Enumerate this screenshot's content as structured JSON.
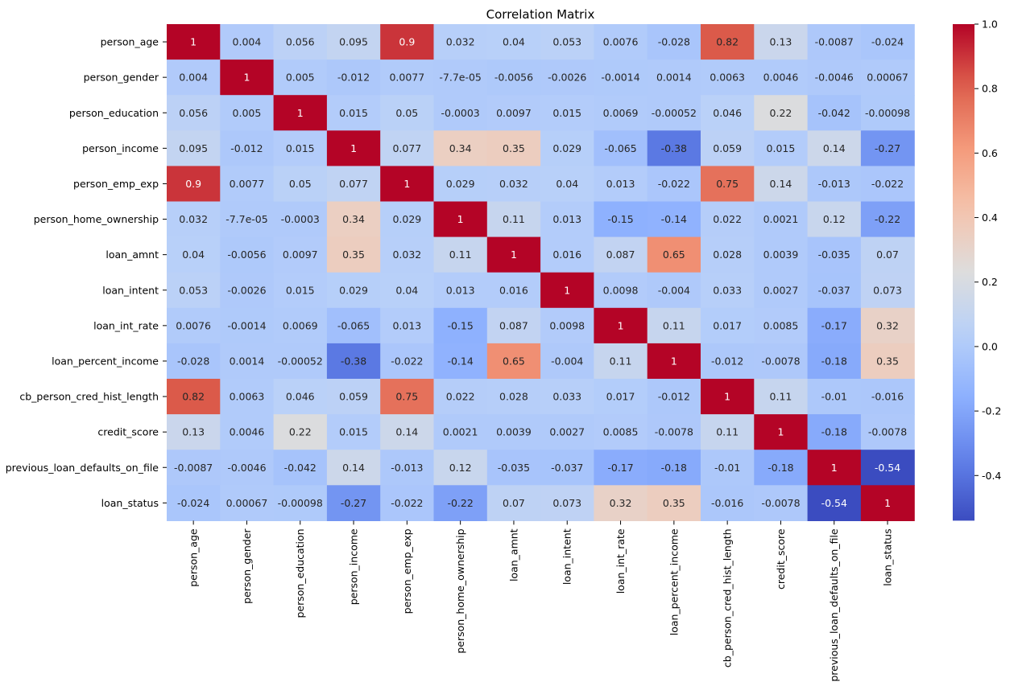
{
  "chart_data": {
    "type": "heatmap",
    "title": "Correlation Matrix",
    "xlabel": "",
    "ylabel": "",
    "rows": [
      "person_age",
      "person_gender",
      "person_education",
      "person_income",
      "person_emp_exp",
      "person_home_ownership",
      "loan_amnt",
      "loan_intent",
      "loan_int_rate",
      "loan_percent_income",
      "cb_person_cred_hist_length",
      "credit_score",
      "previous_loan_defaults_on_file",
      "loan_status"
    ],
    "columns": [
      "person_age",
      "person_gender",
      "person_education",
      "person_income",
      "person_emp_exp",
      "person_home_ownership",
      "loan_amnt",
      "loan_intent",
      "loan_int_rate",
      "loan_percent_income",
      "cb_person_cred_hist_length",
      "credit_score",
      "previous_loan_defaults_on_file",
      "loan_status"
    ],
    "annotations": [
      [
        "1",
        "0.004",
        "0.056",
        "0.095",
        "0.9",
        "0.032",
        "0.04",
        "0.053",
        "0.0076",
        "-0.028",
        "0.82",
        "0.13",
        "-0.0087",
        "-0.024"
      ],
      [
        "0.004",
        "1",
        "0.005",
        "-0.012",
        "0.0077",
        "-7.7e-05",
        "-0.0056",
        "-0.0026",
        "-0.0014",
        "0.0014",
        "0.0063",
        "0.0046",
        "-0.0046",
        "0.00067"
      ],
      [
        "0.056",
        "0.005",
        "1",
        "0.015",
        "0.05",
        "-0.0003",
        "0.0097",
        "0.015",
        "0.0069",
        "-0.00052",
        "0.046",
        "0.22",
        "-0.042",
        "-0.00098"
      ],
      [
        "0.095",
        "-0.012",
        "0.015",
        "1",
        "0.077",
        "0.34",
        "0.35",
        "0.029",
        "-0.065",
        "-0.38",
        "0.059",
        "0.015",
        "0.14",
        "-0.27"
      ],
      [
        "0.9",
        "0.0077",
        "0.05",
        "0.077",
        "1",
        "0.029",
        "0.032",
        "0.04",
        "0.013",
        "-0.022",
        "0.75",
        "0.14",
        "-0.013",
        "-0.022"
      ],
      [
        "0.032",
        "-7.7e-05",
        "-0.0003",
        "0.34",
        "0.029",
        "1",
        "0.11",
        "0.013",
        "-0.15",
        "-0.14",
        "0.022",
        "0.0021",
        "0.12",
        "-0.22"
      ],
      [
        "0.04",
        "-0.0056",
        "0.0097",
        "0.35",
        "0.032",
        "0.11",
        "1",
        "0.016",
        "0.087",
        "0.65",
        "0.028",
        "0.0039",
        "-0.035",
        "0.07"
      ],
      [
        "0.053",
        "-0.0026",
        "0.015",
        "0.029",
        "0.04",
        "0.013",
        "0.016",
        "1",
        "0.0098",
        "-0.004",
        "0.033",
        "0.0027",
        "-0.037",
        "0.073"
      ],
      [
        "0.0076",
        "-0.0014",
        "0.0069",
        "-0.065",
        "0.013",
        "-0.15",
        "0.087",
        "0.0098",
        "1",
        "0.11",
        "0.017",
        "0.0085",
        "-0.17",
        "0.32"
      ],
      [
        "-0.028",
        "0.0014",
        "-0.00052",
        "-0.38",
        "-0.022",
        "-0.14",
        "0.65",
        "-0.004",
        "0.11",
        "1",
        "-0.012",
        "-0.0078",
        "-0.18",
        "0.35"
      ],
      [
        "0.82",
        "0.0063",
        "0.046",
        "0.059",
        "0.75",
        "0.022",
        "0.028",
        "0.033",
        "0.017",
        "-0.012",
        "1",
        "0.11",
        "-0.01",
        "-0.016"
      ],
      [
        "0.13",
        "0.0046",
        "0.22",
        "0.015",
        "0.14",
        "0.0021",
        "0.0039",
        "0.0027",
        "0.0085",
        "-0.0078",
        "0.11",
        "1",
        "-0.18",
        "-0.0078"
      ],
      [
        "-0.0087",
        "-0.0046",
        "-0.042",
        "0.14",
        "-0.013",
        "0.12",
        "-0.035",
        "-0.037",
        "-0.17",
        "-0.18",
        "-0.01",
        "-0.18",
        "1",
        "-0.54"
      ],
      [
        "-0.024",
        "0.00067",
        "-0.00098",
        "-0.27",
        "-0.022",
        "-0.22",
        "0.07",
        "0.073",
        "0.32",
        "0.35",
        "-0.016",
        "-0.0078",
        "-0.54",
        "1"
      ]
    ],
    "colormap": "coolwarm",
    "colorbar": {
      "vmin": -0.54,
      "vmax": 1.0,
      "ticks": [
        -0.4,
        -0.2,
        0.0,
        0.2,
        0.4,
        0.6,
        0.8,
        1.0
      ],
      "tick_labels": [
        "-0.4",
        "-0.2",
        "0.0",
        "0.2",
        "0.4",
        "0.6",
        "0.8",
        "1.0"
      ]
    }
  }
}
